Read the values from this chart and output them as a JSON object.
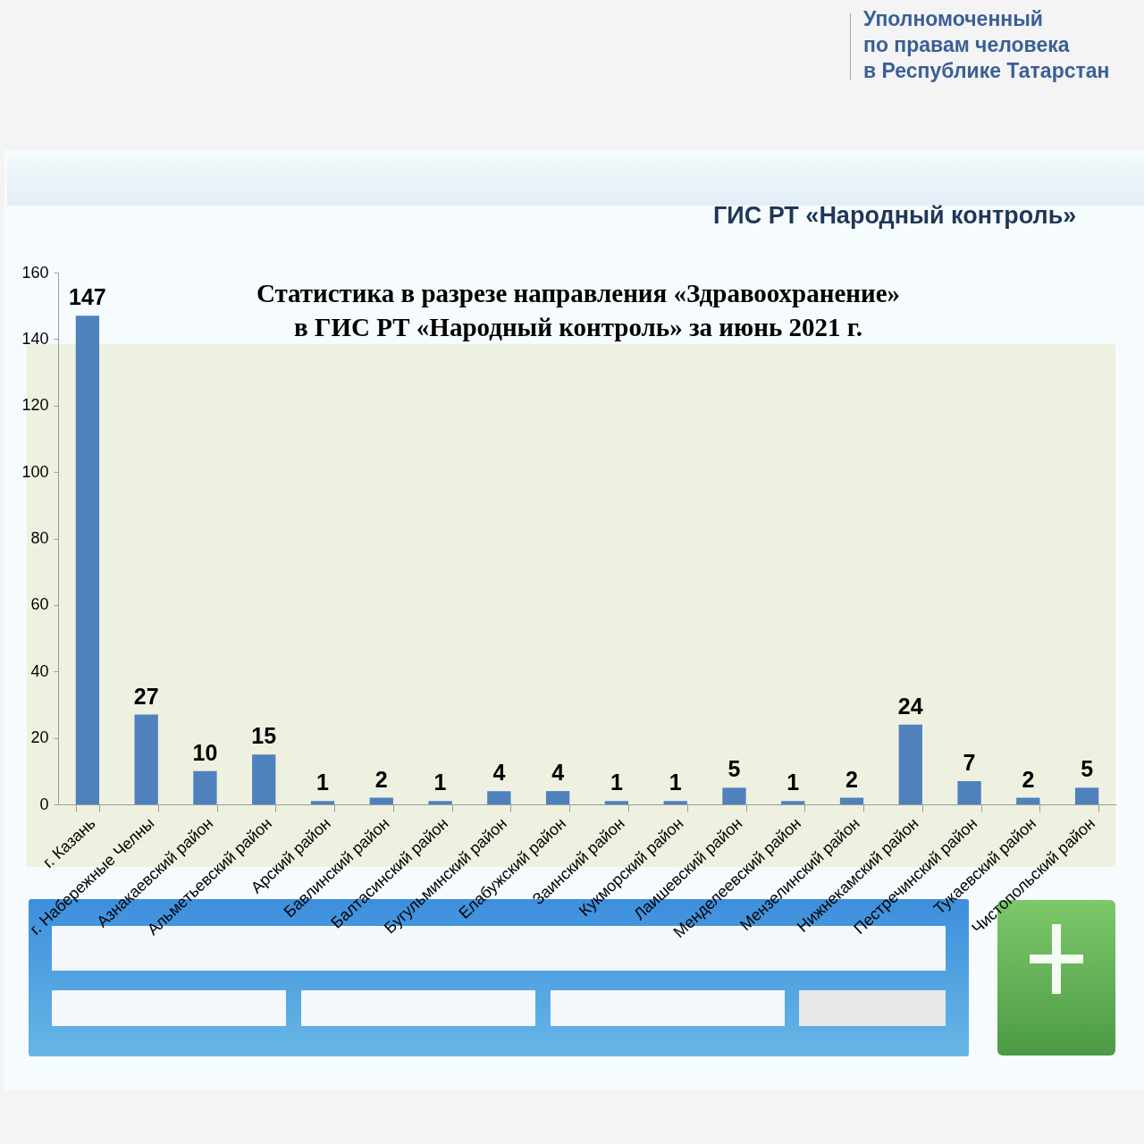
{
  "chart_data": {
    "type": "bar",
    "title": "Статистика в разрезе направления «Здравоохранение»\nв ГИС РТ «Народный контроль» за июнь 2021 г.",
    "categories": [
      "г. Казань",
      "г. Набережные Челны",
      "Азнакаевский район",
      "Альметьевский район",
      "Арский район",
      "Бавлинский район",
      "Балтасинский район",
      "Бугульминский район",
      "Елабужский район",
      "Заинский район",
      "Кукморский район",
      "Лаишевский район",
      "Менделеевский район",
      "Мензелинский район",
      "Нижнекамский район",
      "Пестречинский район",
      "Тукаевский район",
      "Чистопольский район"
    ],
    "values": [
      147,
      27,
      10,
      15,
      1,
      2,
      1,
      4,
      4,
      1,
      1,
      5,
      1,
      2,
      24,
      7,
      2,
      5
    ],
    "color": "#4f81bd",
    "ylim": [
      0,
      160
    ],
    "yticks": [
      0,
      20,
      40,
      60,
      80,
      100,
      120,
      140,
      160
    ],
    "data_labels": true,
    "annotations": [
      "Уполномоченный\nпо правам человека\nв Республике Татарстан",
      "ГИС РТ «Народный контроль»"
    ]
  }
}
